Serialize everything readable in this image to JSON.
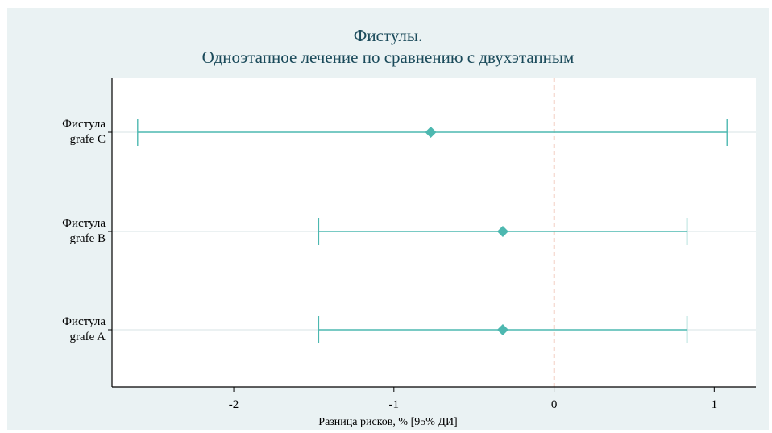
{
  "chart_data": {
    "type": "forest",
    "title": [
      "Фистулы.",
      "Одноэтапное лечение по сравнению с двухэтапным"
    ],
    "xlabel": "Разница рисков, % [95% ДИ]",
    "xlim": [
      -2.76,
      1.26
    ],
    "xticks": [
      -2,
      -1,
      0,
      1
    ],
    "xtick_labels": [
      "-2",
      "-1",
      "0",
      "1"
    ],
    "reference_line": 0,
    "series": [
      {
        "label_line1": "Фистула",
        "label_line2": "grafe C",
        "estimate": -0.77,
        "lower": -2.6,
        "upper": 1.08
      },
      {
        "label_line1": "Фистула",
        "label_line2": "grafe B",
        "estimate": -0.32,
        "lower": -1.47,
        "upper": 0.83
      },
      {
        "label_line1": "Фистула",
        "label_line2": "grafe A",
        "estimate": -0.32,
        "lower": -1.47,
        "upper": 0.83
      }
    ],
    "grid": true,
    "colors": {
      "marker": "#4db8b0",
      "ci_line": "#4db8b0",
      "reference": "#d9623b",
      "grid": "#d7e3e6",
      "background": "#eaf2f3"
    }
  }
}
